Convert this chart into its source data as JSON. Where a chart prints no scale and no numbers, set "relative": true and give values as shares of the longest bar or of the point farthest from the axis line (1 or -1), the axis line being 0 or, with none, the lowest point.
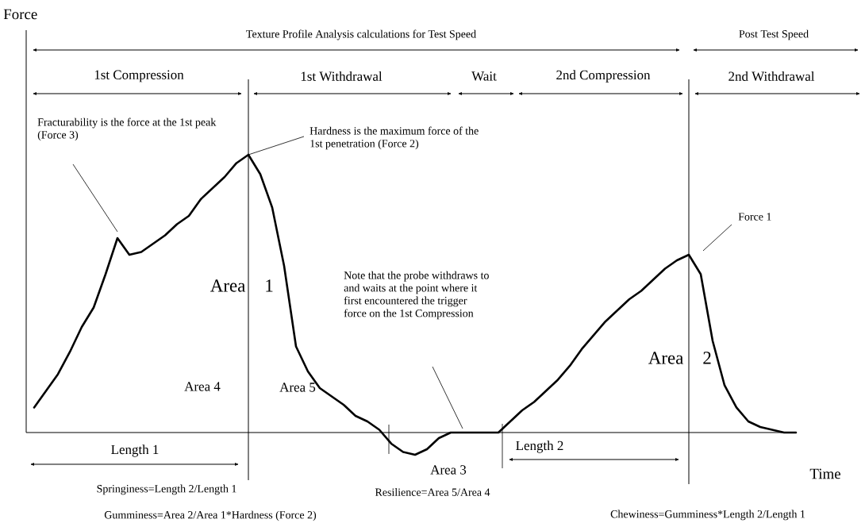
{
  "chart_data": {
    "type": "line",
    "relative": true,
    "categories": [
      null,
      null,
      null,
      null,
      null,
      null,
      null,
      null,
      null,
      null,
      null,
      null,
      null,
      null,
      null,
      null,
      null,
      null,
      null,
      null,
      null,
      null,
      null,
      null,
      null,
      null,
      null,
      null,
      null,
      null,
      null,
      null,
      null,
      null,
      null,
      null,
      null,
      null,
      null,
      null,
      null,
      null,
      null,
      null,
      null,
      null,
      null,
      null,
      null,
      null,
      null,
      null,
      null,
      null,
      null,
      null,
      null,
      null,
      null,
      null,
      null,
      null,
      null,
      null,
      null
    ],
    "series": [
      {
        "color": "#000000",
        "values": [
          0.09,
          0.15,
          0.21,
          0.29,
          0.38,
          0.45,
          0.57,
          0.7,
          0.64,
          0.65,
          0.68,
          0.71,
          0.75,
          0.78,
          0.84,
          0.88,
          0.92,
          0.97,
          1,
          0.93,
          0.81,
          0.6,
          0.31,
          0.22,
          0.16,
          0.13,
          0.1,
          0.06,
          0.04,
          0.01,
          -0.04,
          -0.07,
          -0.08,
          -0.06,
          -0.02,
          0,
          0,
          0,
          0,
          0,
          0.04,
          0.08,
          0.11,
          0.15,
          0.19,
          0.24,
          0.3,
          0.35,
          0.4,
          0.44,
          0.48,
          0.51,
          0.55,
          0.59,
          0.62,
          0.64,
          0.57,
          0.33,
          0.17,
          0.09,
          0.04,
          0.02,
          0.01,
          0,
          0
        ]
      }
    ],
    "annotations": [
      "Texture Profile Analysis calculations for Test Speed",
      "Post Test Speed",
      "1st Compression",
      "1st Withdrawal",
      "Wait",
      "2nd Compression",
      "2nd Withdrawal",
      "Fracturability is the force at the 1st peak (Force 3)",
      "Hardness is the maximum force of the 1st penetration (Force 2)",
      "Note that the probe withdraws to and waits at the point where it first encountered the trigger force on the 1st Compression",
      "Force 1",
      "Area 1",
      "Area 2",
      "Area 3",
      "Area 4",
      "Area 5",
      "Length 1",
      "Length 2",
      "Springiness=Length 2/Length 1",
      "Gumminess=Area 2/Area 1*Hardness (Force 2)",
      "Resilience=Area 5/Area 4",
      "Chewiness=Gumminess*Length 2/Length 1",
      "Force",
      "Time"
    ]
  }
}
